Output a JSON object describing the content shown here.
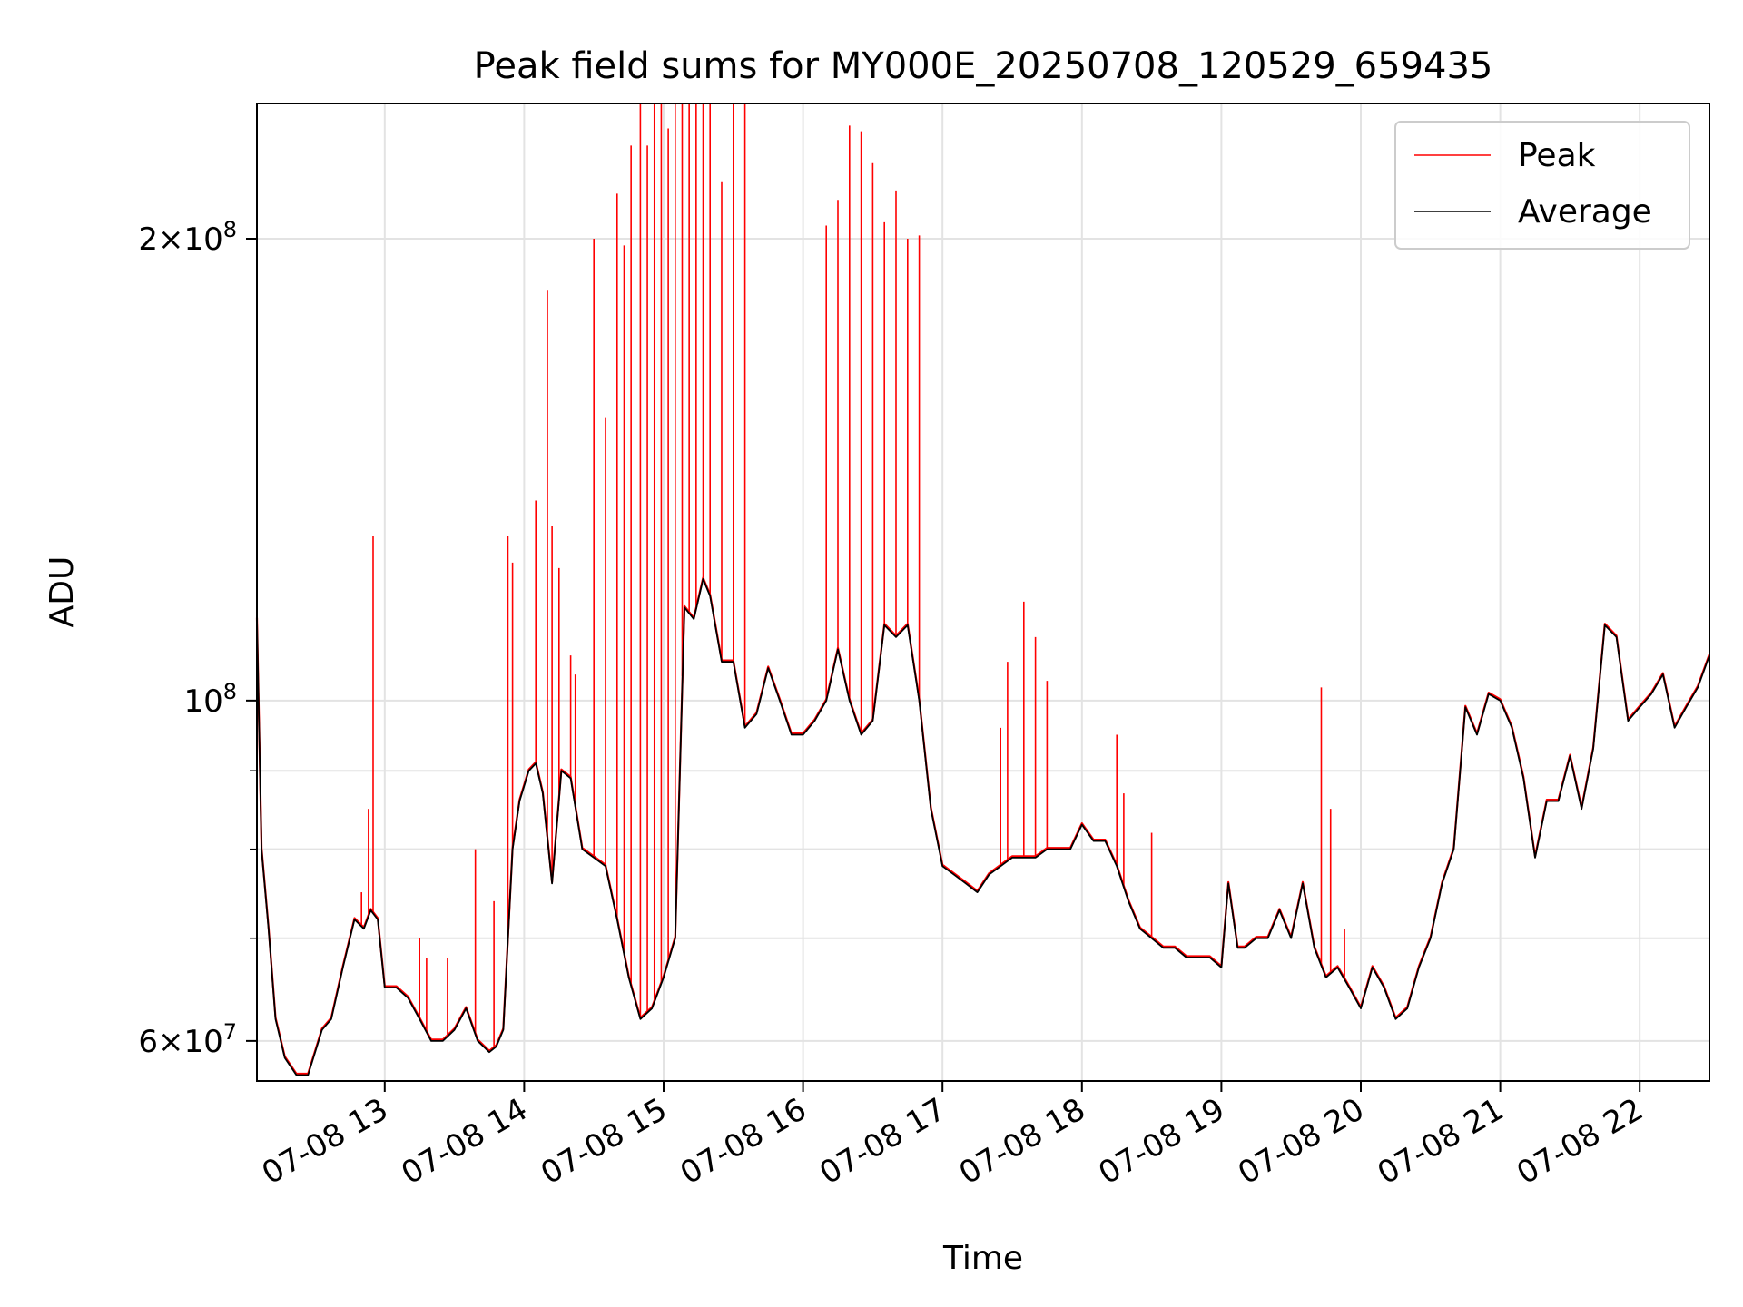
{
  "chart_data": {
    "type": "line",
    "title": "Peak field sums for MY000E_20250708_120529_659435",
    "xlabel": "Time",
    "ylabel": "ADU",
    "y_scale": "log",
    "ylim": [
      56500000,
      245000000
    ],
    "xlim": [
      "2025-07-08 12:05",
      "2025-07-08 22:30"
    ],
    "grid": true,
    "legend_position": "top-right",
    "x_tick_labels": [
      {
        "t": "2025-07-08 13:00",
        "label": "07-08 13"
      },
      {
        "t": "2025-07-08 14:00",
        "label": "07-08 14"
      },
      {
        "t": "2025-07-08 15:00",
        "label": "07-08 15"
      },
      {
        "t": "2025-07-08 16:00",
        "label": "07-08 16"
      },
      {
        "t": "2025-07-08 17:00",
        "label": "07-08 17"
      },
      {
        "t": "2025-07-08 18:00",
        "label": "07-08 18"
      },
      {
        "t": "2025-07-08 19:00",
        "label": "07-08 19"
      },
      {
        "t": "2025-07-08 20:00",
        "label": "07-08 20"
      },
      {
        "t": "2025-07-08 21:00",
        "label": "07-08 21"
      },
      {
        "t": "2025-07-08 22:00",
        "label": "07-08 22"
      }
    ],
    "y_tick_labels": [
      {
        "value": 60000000,
        "mantissa": "6",
        "exponent": "7"
      },
      {
        "value": 100000000,
        "mantissa": "",
        "exponent": "8"
      },
      {
        "value": 200000000,
        "mantissa": "2",
        "exponent": "8"
      }
    ],
    "y_minor_grid": [
      70000000,
      80000000,
      90000000
    ],
    "series": [
      {
        "name": "Average",
        "color": "#000000",
        "x": [
          "2025-07-08 12:05",
          "2025-07-08 12:07",
          "2025-07-08 12:10",
          "2025-07-08 12:13",
          "2025-07-08 12:17",
          "2025-07-08 12:22",
          "2025-07-08 12:27",
          "2025-07-08 12:33",
          "2025-07-08 12:37",
          "2025-07-08 12:42",
          "2025-07-08 12:47",
          "2025-07-08 12:51",
          "2025-07-08 12:54",
          "2025-07-08 12:57",
          "2025-07-08 13:00",
          "2025-07-08 13:05",
          "2025-07-08 13:10",
          "2025-07-08 13:15",
          "2025-07-08 13:20",
          "2025-07-08 13:25",
          "2025-07-08 13:30",
          "2025-07-08 13:35",
          "2025-07-08 13:40",
          "2025-07-08 13:45",
          "2025-07-08 13:48",
          "2025-07-08 13:51",
          "2025-07-08 13:55",
          "2025-07-08 13:58",
          "2025-07-08 14:02",
          "2025-07-08 14:05",
          "2025-07-08 14:08",
          "2025-07-08 14:12",
          "2025-07-08 14:16",
          "2025-07-08 14:20",
          "2025-07-08 14:25",
          "2025-07-08 14:30",
          "2025-07-08 14:35",
          "2025-07-08 14:40",
          "2025-07-08 14:45",
          "2025-07-08 14:50",
          "2025-07-08 14:55",
          "2025-07-08 15:00",
          "2025-07-08 15:05",
          "2025-07-08 15:09",
          "2025-07-08 15:13",
          "2025-07-08 15:17",
          "2025-07-08 15:20",
          "2025-07-08 15:25",
          "2025-07-08 15:30",
          "2025-07-08 15:35",
          "2025-07-08 15:40",
          "2025-07-08 15:45",
          "2025-07-08 15:50",
          "2025-07-08 15:55",
          "2025-07-08 16:00",
          "2025-07-08 16:05",
          "2025-07-08 16:10",
          "2025-07-08 16:15",
          "2025-07-08 16:20",
          "2025-07-08 16:25",
          "2025-07-08 16:30",
          "2025-07-08 16:35",
          "2025-07-08 16:40",
          "2025-07-08 16:45",
          "2025-07-08 16:50",
          "2025-07-08 16:55",
          "2025-07-08 17:00",
          "2025-07-08 17:05",
          "2025-07-08 17:10",
          "2025-07-08 17:15",
          "2025-07-08 17:20",
          "2025-07-08 17:25",
          "2025-07-08 17:30",
          "2025-07-08 17:35",
          "2025-07-08 17:40",
          "2025-07-08 17:45",
          "2025-07-08 17:50",
          "2025-07-08 17:55",
          "2025-07-08 18:00",
          "2025-07-08 18:05",
          "2025-07-08 18:10",
          "2025-07-08 18:15",
          "2025-07-08 18:20",
          "2025-07-08 18:25",
          "2025-07-08 18:30",
          "2025-07-08 18:35",
          "2025-07-08 18:40",
          "2025-07-08 18:45",
          "2025-07-08 18:50",
          "2025-07-08 18:55",
          "2025-07-08 19:00",
          "2025-07-08 19:03",
          "2025-07-08 19:07",
          "2025-07-08 19:10",
          "2025-07-08 19:15",
          "2025-07-08 19:20",
          "2025-07-08 19:25",
          "2025-07-08 19:30",
          "2025-07-08 19:35",
          "2025-07-08 19:40",
          "2025-07-08 19:45",
          "2025-07-08 19:50",
          "2025-07-08 19:55",
          "2025-07-08 20:00",
          "2025-07-08 20:05",
          "2025-07-08 20:10",
          "2025-07-08 20:15",
          "2025-07-08 20:20",
          "2025-07-08 20:25",
          "2025-07-08 20:30",
          "2025-07-08 20:35",
          "2025-07-08 20:40",
          "2025-07-08 20:45",
          "2025-07-08 20:50",
          "2025-07-08 20:55",
          "2025-07-08 21:00",
          "2025-07-08 21:05",
          "2025-07-08 21:10",
          "2025-07-08 21:15",
          "2025-07-08 21:20",
          "2025-07-08 21:25",
          "2025-07-08 21:30",
          "2025-07-08 21:35",
          "2025-07-08 21:40",
          "2025-07-08 21:45",
          "2025-07-08 21:50",
          "2025-07-08 21:55",
          "2025-07-08 22:00",
          "2025-07-08 22:05",
          "2025-07-08 22:10",
          "2025-07-08 22:15",
          "2025-07-08 22:20",
          "2025-07-08 22:25",
          "2025-07-08 22:30"
        ],
        "values": [
          113000000,
          80000000,
          71000000,
          62000000,
          58500000,
          57000000,
          57000000,
          61000000,
          62000000,
          67000000,
          72000000,
          71000000,
          73000000,
          72000000,
          65000000,
          65000000,
          64000000,
          62000000,
          60000000,
          60000000,
          61000000,
          63000000,
          60000000,
          59000000,
          59500000,
          61000000,
          80000000,
          86000000,
          90000000,
          91000000,
          87000000,
          76000000,
          90000000,
          89000000,
          80000000,
          79000000,
          78000000,
          72000000,
          66000000,
          62000000,
          63000000,
          66000000,
          70000000,
          115000000,
          113000000,
          120000000,
          117000000,
          106000000,
          106000000,
          96000000,
          98000000,
          105000000,
          100000000,
          95000000,
          95000000,
          97000000,
          100000000,
          108000000,
          100000000,
          95000000,
          97000000,
          112000000,
          110000000,
          112000000,
          100000000,
          85000000,
          78000000,
          77000000,
          76000000,
          75000000,
          77000000,
          78000000,
          79000000,
          79000000,
          79000000,
          80000000,
          80000000,
          80000000,
          83000000,
          81000000,
          81000000,
          78000000,
          74000000,
          71000000,
          70000000,
          69000000,
          69000000,
          68000000,
          68000000,
          68000000,
          67000000,
          76000000,
          69000000,
          69000000,
          70000000,
          70000000,
          73000000,
          70000000,
          76000000,
          69000000,
          66000000,
          67000000,
          65000000,
          63000000,
          67000000,
          65000000,
          62000000,
          63000000,
          67000000,
          70000000,
          76000000,
          80000000,
          99000000,
          95000000,
          101000000,
          100000000,
          96000000,
          89000000,
          79000000,
          86000000,
          86000000,
          92000000,
          85000000,
          93000000,
          112000000,
          110000000,
          97000000,
          99000000,
          101000000,
          104000000,
          96000000,
          99000000,
          102000000,
          107000000
        ]
      },
      {
        "name": "Peak",
        "color": "#ff0000",
        "spikes_x": [
          "2025-07-08 12:05",
          "2025-07-08 12:50",
          "2025-07-08 12:53",
          "2025-07-08 12:55",
          "2025-07-08 13:15",
          "2025-07-08 13:18",
          "2025-07-08 13:27",
          "2025-07-08 13:39",
          "2025-07-08 13:47",
          "2025-07-08 13:53",
          "2025-07-08 13:55",
          "2025-07-08 14:05",
          "2025-07-08 14:10",
          "2025-07-08 14:12",
          "2025-07-08 14:15",
          "2025-07-08 14:20",
          "2025-07-08 14:22",
          "2025-07-08 14:30",
          "2025-07-08 14:35",
          "2025-07-08 14:40",
          "2025-07-08 14:43",
          "2025-07-08 14:46",
          "2025-07-08 14:50",
          "2025-07-08 14:53",
          "2025-07-08 14:56",
          "2025-07-08 14:59",
          "2025-07-08 15:02",
          "2025-07-08 15:05",
          "2025-07-08 15:08",
          "2025-07-08 15:11",
          "2025-07-08 15:14",
          "2025-07-08 15:17",
          "2025-07-08 15:20",
          "2025-07-08 15:25",
          "2025-07-08 15:30",
          "2025-07-08 15:35",
          "2025-07-08 16:10",
          "2025-07-08 16:15",
          "2025-07-08 16:20",
          "2025-07-08 16:25",
          "2025-07-08 16:30",
          "2025-07-08 16:35",
          "2025-07-08 16:40",
          "2025-07-08 16:45",
          "2025-07-08 16:50",
          "2025-07-08 17:25",
          "2025-07-08 17:28",
          "2025-07-08 17:35",
          "2025-07-08 17:40",
          "2025-07-08 17:45",
          "2025-07-08 18:15",
          "2025-07-08 18:18",
          "2025-07-08 18:30",
          "2025-07-08 19:43",
          "2025-07-08 19:47",
          "2025-07-08 19:53"
        ],
        "spikes_values": [
          113000000,
          75000000,
          85000000,
          128000000,
          70000000,
          68000000,
          68000000,
          80000000,
          74000000,
          128000000,
          123000000,
          135000000,
          185000000,
          130000000,
          122000000,
          107000000,
          104000000,
          200000000,
          153000000,
          214000000,
          198000000,
          230000000,
          245000000,
          230000000,
          245000000,
          245000000,
          236000000,
          245000000,
          245000000,
          245000000,
          245000000,
          245000000,
          245000000,
          218000000,
          245000000,
          245000000,
          204000000,
          212000000,
          237000000,
          235000000,
          224000000,
          205000000,
          215000000,
          200000000,
          201000000,
          96000000,
          106000000,
          116000000,
          110000000,
          103000000,
          95000000,
          87000000,
          82000000,
          102000000,
          85000000,
          71000000
        ]
      }
    ]
  }
}
